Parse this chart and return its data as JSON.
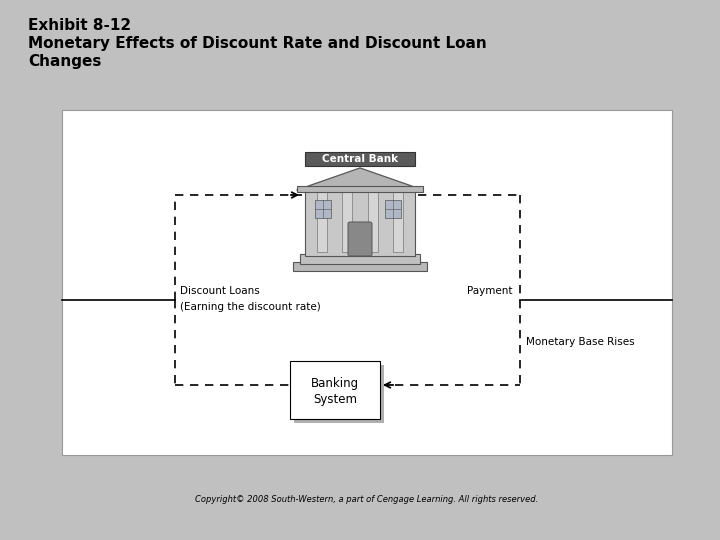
{
  "title_line1": "Exhibit 8-12",
  "title_line2": "Monetary Effects of Discount Rate and Discount Loan",
  "title_line3": "Changes",
  "bg_color": "#c0c0c0",
  "diagram_bg": "#ffffff",
  "label_discount_loans": "Discount Loans",
  "label_discount_rate": "(Earning the discount rate)",
  "label_payment": "Payment",
  "label_monetary": "Monetary Base Rises",
  "label_central_bank": "Central Bank",
  "label_banking_system_1": "Banking",
  "label_banking_system_2": "System",
  "copyright": "Copyright© 2008 South-Western, a part of Cengage Learning. All rights reserved.",
  "font_size_title": 11,
  "font_size_label": 7.5,
  "font_size_copyright": 6
}
